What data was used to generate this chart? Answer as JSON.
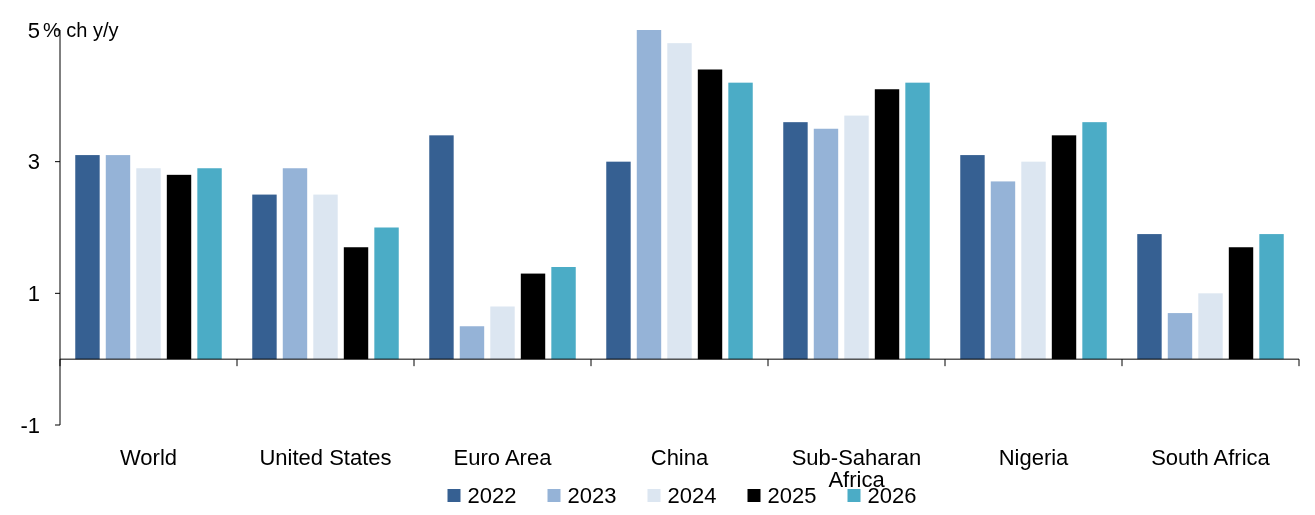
{
  "chart_data": {
    "type": "bar",
    "ylabel": "% ch y/y",
    "categories": [
      "World",
      "United States",
      "Euro Area",
      "China",
      "Sub-Saharan Africa",
      "Nigeria",
      "South Africa"
    ],
    "series": [
      {
        "name": "2022",
        "color": "#366092",
        "values": [
          3.1,
          2.5,
          3.4,
          3.0,
          3.6,
          3.1,
          1.9
        ]
      },
      {
        "name": "2023",
        "color": "#95b3d7",
        "values": [
          3.1,
          2.9,
          0.5,
          5.0,
          3.5,
          2.7,
          0.7
        ]
      },
      {
        "name": "2024",
        "color": "#dce6f1",
        "values": [
          2.9,
          2.5,
          0.8,
          4.8,
          3.7,
          3.0,
          1.0
        ]
      },
      {
        "name": "2025",
        "color": "#000000",
        "values": [
          2.8,
          1.7,
          1.3,
          4.4,
          4.1,
          3.4,
          1.7
        ]
      },
      {
        "name": "2026",
        "color": "#4bacc6",
        "values": [
          2.9,
          2.0,
          1.4,
          4.2,
          4.2,
          3.6,
          1.9
        ]
      }
    ],
    "ylim": [
      -1,
      5
    ],
    "yticks": [
      -1,
      1,
      3,
      5
    ],
    "grid": false,
    "legend": "bottom"
  }
}
